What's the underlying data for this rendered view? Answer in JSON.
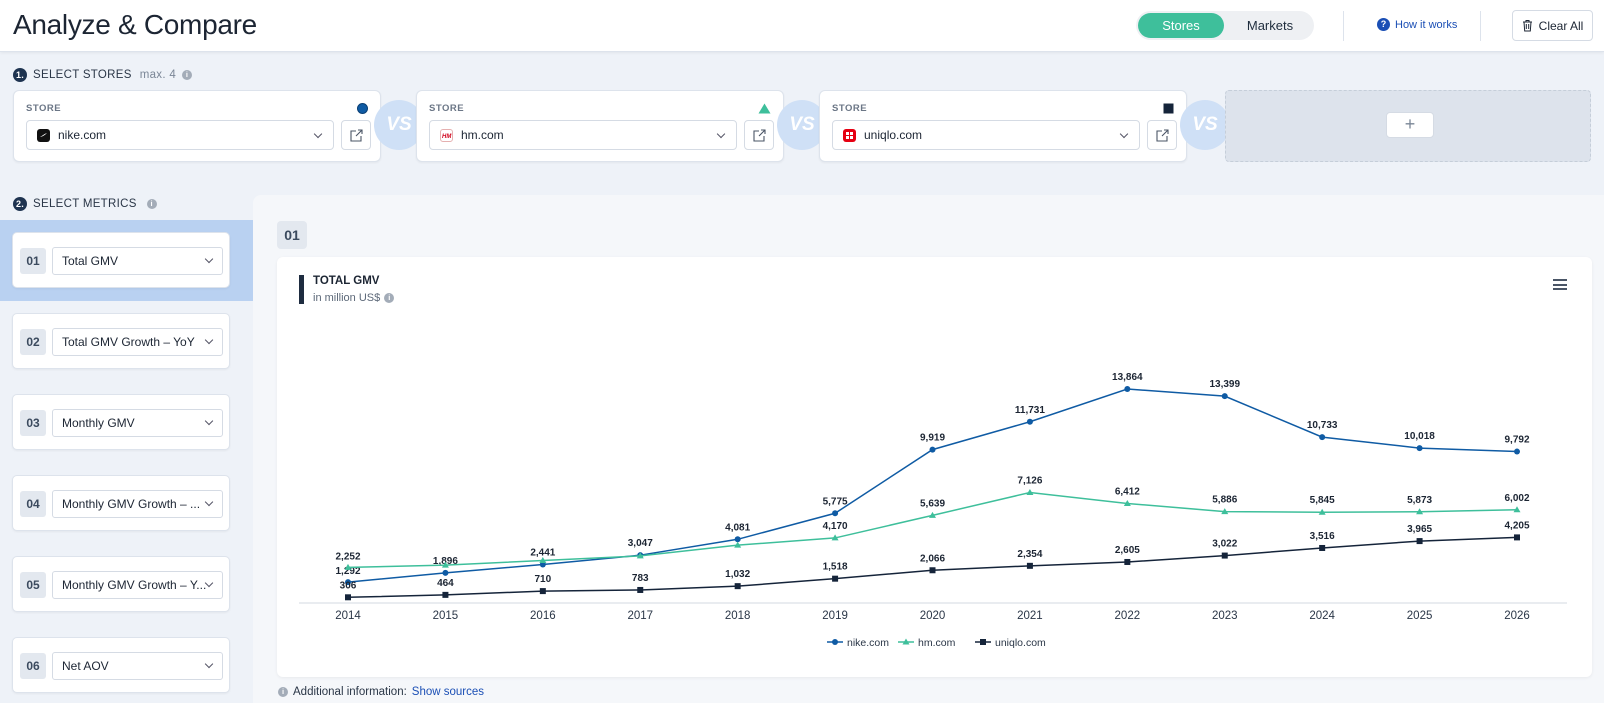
{
  "header": {
    "title": "Analyze & Compare",
    "toggle": {
      "active": "Stores",
      "inactive": "Markets"
    },
    "how_it_works": "How it works",
    "clear_all": "Clear All"
  },
  "step1": {
    "num": "1.",
    "label": "SELECT STORES",
    "hint": "max. 4"
  },
  "stores": [
    {
      "label": "STORE",
      "name": "nike.com"
    },
    {
      "label": "STORE",
      "name": "hm.com"
    },
    {
      "label": "STORE",
      "name": "uniqlo.com"
    }
  ],
  "vs_label": "VS",
  "add_label": "+",
  "step2": {
    "num": "2.",
    "label": "SELECT METRICS"
  },
  "metrics": [
    {
      "num": "01",
      "label": "Total GMV"
    },
    {
      "num": "02",
      "label": "Total GMV Growth – YoY"
    },
    {
      "num": "03",
      "label": "Monthly GMV"
    },
    {
      "num": "04",
      "label": "Monthly GMV Growth – ..."
    },
    {
      "num": "05",
      "label": "Monthly GMV Growth – Y..."
    },
    {
      "num": "06",
      "label": "Net AOV"
    }
  ],
  "chart_number": "01",
  "chart_data": {
    "type": "line",
    "title": "TOTAL GMV",
    "subtitle": "in million US$",
    "categories": [
      "2014",
      "2015",
      "2016",
      "2017",
      "2018",
      "2019",
      "2020",
      "2021",
      "2022",
      "2023",
      "2024",
      "2025",
      "2026"
    ],
    "ylim": [
      0,
      16000
    ],
    "series": [
      {
        "name": "nike.com",
        "color": "#0f5ba4",
        "marker": "circle",
        "values": [
          1292,
          1896,
          2441,
          3047,
          4081,
          5775,
          9919,
          11731,
          13864,
          13399,
          10733,
          10018,
          9792
        ]
      },
      {
        "name": "hm.com",
        "color": "#3ebf9b",
        "marker": "triangle",
        "values": [
          2252,
          2400,
          2700,
          3000,
          3700,
          4170,
          5639,
          7126,
          6412,
          5886,
          5845,
          5873,
          6002
        ]
      },
      {
        "name": "uniqlo.com",
        "color": "#15243a",
        "marker": "square",
        "values": [
          306,
          464,
          710,
          783,
          1032,
          1518,
          2066,
          2354,
          2605,
          3022,
          3516,
          3965,
          4205
        ]
      }
    ],
    "data_labels": {
      "nike.com": [
        "1,292",
        "1,896",
        "2,441",
        "3,047",
        "4,081",
        "5,775",
        "9,919",
        "11,731",
        "13,864",
        "13,399",
        "10,733",
        "10,018",
        "9,792"
      ],
      "hm.com": [
        "2,252",
        "",
        "",
        "",
        "",
        "4,170",
        "5,639",
        "7,126",
        "6,412",
        "5,886",
        "5,845",
        "5,873",
        "6,002"
      ],
      "uniqlo.com": [
        "306",
        "464",
        "710",
        "783",
        "1,032",
        "1,518",
        "2,066",
        "2,354",
        "2,605",
        "3,022",
        "3,516",
        "3,965",
        "4,205"
      ]
    },
    "legend": [
      "nike.com",
      "hm.com",
      "uniqlo.com"
    ],
    "legend_position": "bottom-center"
  },
  "footer": {
    "additional_label": "Additional information:",
    "sources_link": "Show sources"
  }
}
